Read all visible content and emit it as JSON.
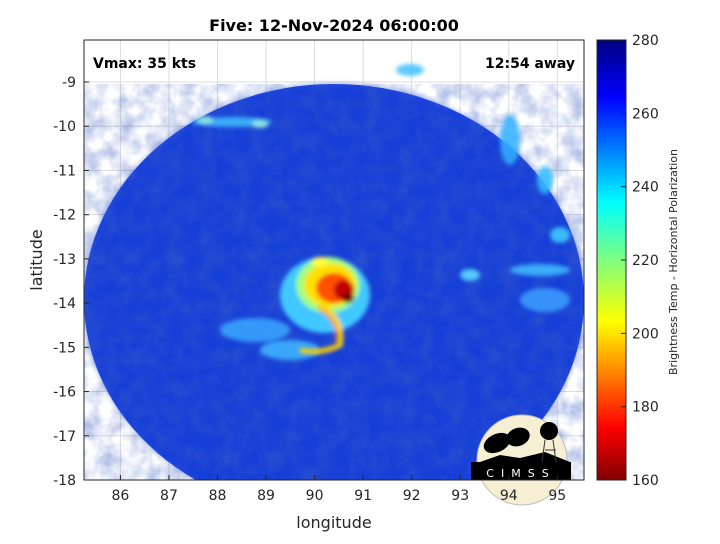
{
  "chart_data": {
    "type": "heatmap",
    "title": "Five: 12-Nov-2024 06:00:00",
    "xlabel": "longitude",
    "ylabel": "latitude",
    "xlim": [
      85.25,
      95.55
    ],
    "ylim": [
      -18,
      -8.05
    ],
    "xticks": [
      "86",
      "87",
      "88",
      "89",
      "90",
      "91",
      "92",
      "93",
      "94",
      "95"
    ],
    "xtick_values": [
      86,
      87,
      88,
      89,
      90,
      91,
      92,
      93,
      94,
      95
    ],
    "yticks": [
      "-9",
      "-10",
      "-11",
      "-12",
      "-13",
      "-14",
      "-15",
      "-16",
      "-17",
      "-18"
    ],
    "ytick_values": [
      -9,
      -10,
      -11,
      -12,
      -13,
      -14,
      -15,
      -16,
      -17,
      -18
    ],
    "grid": true,
    "annotations": {
      "vmax": "Vmax: 35 kts",
      "away": "12:54 away"
    },
    "colorbar": {
      "label": "Brightness Temp - Horizontal Polarization",
      "range": [
        160,
        280
      ],
      "ticks": [
        "160",
        "180",
        "200",
        "220",
        "240",
        "260",
        "280"
      ],
      "tick_values": [
        160,
        180,
        200,
        220,
        240,
        260,
        280
      ],
      "colormap": "jet",
      "placement": "right"
    },
    "storm_center": {
      "lon": 90.5,
      "lat": -13.8
    }
  },
  "logo": {
    "text": "CIMSS"
  },
  "colors": {
    "background_disk": "#1a3fe0",
    "cold_core": "#8b0000",
    "axis": "#262626",
    "grid": "#dcdcdc"
  }
}
